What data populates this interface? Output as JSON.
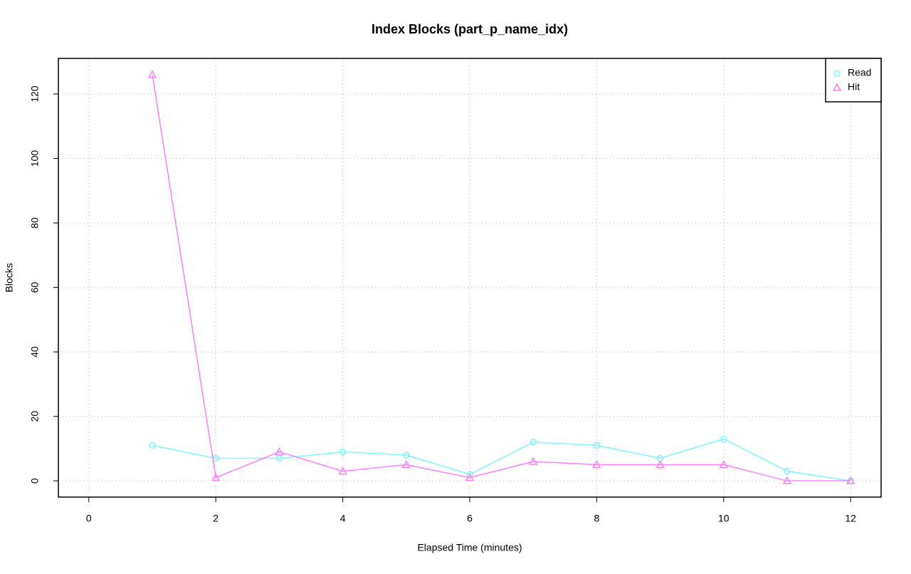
{
  "chart_data": {
    "type": "line",
    "title": "Index Blocks (part_p_name_idx)",
    "x_label": "Elapsed Time (minutes)",
    "y_label": "Blocks",
    "x": [
      1,
      2,
      3,
      4,
      5,
      6,
      7,
      8,
      9,
      10,
      11,
      12
    ],
    "series": [
      {
        "name": "Read",
        "color": "#7ff5ff",
        "marker": "circle",
        "values": [
          11,
          7,
          7,
          9,
          8,
          2,
          12,
          11,
          7,
          13,
          3,
          0
        ]
      },
      {
        "name": "Hit",
        "color": "#ff7fff",
        "marker": "triangle",
        "values": [
          126,
          1,
          9,
          3,
          5,
          1,
          6,
          5,
          5,
          5,
          0,
          0
        ]
      }
    ],
    "xlim": [
      -0.48,
      12.48
    ],
    "xticks": [
      0,
      2,
      4,
      6,
      8,
      10,
      12
    ],
    "ylim": [
      -5.04,
      131.04
    ],
    "yticks": [
      0,
      20,
      40,
      60,
      80,
      100,
      120
    ],
    "grid": true,
    "legend": "topright"
  }
}
